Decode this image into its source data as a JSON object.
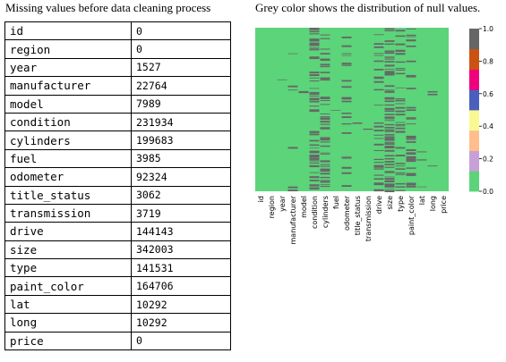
{
  "captions": {
    "left": "Missing values before data cleaning process",
    "right": "Grey color shows the distribution of null values."
  },
  "table": {
    "rows": [
      {
        "column": "id",
        "missing": "0"
      },
      {
        "column": "region",
        "missing": "0"
      },
      {
        "column": "year",
        "missing": "1527"
      },
      {
        "column": "manufacturer",
        "missing": "22764"
      },
      {
        "column": "model",
        "missing": "7989"
      },
      {
        "column": "condition",
        "missing": "231934"
      },
      {
        "column": "cylinders",
        "missing": "199683"
      },
      {
        "column": "fuel",
        "missing": "3985"
      },
      {
        "column": "odometer",
        "missing": "92324"
      },
      {
        "column": "title_status",
        "missing": "3062"
      },
      {
        "column": "transmission",
        "missing": "3719"
      },
      {
        "column": "drive",
        "missing": "144143"
      },
      {
        "column": "size",
        "missing": "342003"
      },
      {
        "column": "type",
        "missing": "141531"
      },
      {
        "column": "paint_color",
        "missing": "164706"
      },
      {
        "column": "lat",
        "missing": "10292"
      },
      {
        "column": "long",
        "missing": "10292"
      },
      {
        "column": "price",
        "missing": "0"
      }
    ]
  },
  "chart_data": {
    "type": "heatmap",
    "x_labels": [
      "id",
      "region",
      "year",
      "manufacturer",
      "model",
      "condition",
      "cylinders",
      "fuel",
      "odometer",
      "title_status",
      "transmission",
      "drive",
      "size",
      "type",
      "paint_color",
      "lat",
      "long",
      "price"
    ],
    "missing_counts": [
      0,
      0,
      1527,
      22764,
      7989,
      231934,
      199683,
      3985,
      92324,
      3062,
      3719,
      144143,
      342003,
      141531,
      164706,
      10292,
      10292,
      0
    ],
    "present_color": "#5cd47a",
    "null_color": "#666666",
    "colorbar": {
      "ticks": [
        "0.0",
        "0.2",
        "0.4",
        "0.6",
        "0.8",
        "1.0"
      ],
      "colors": [
        "#5cd47a",
        "#c8a0d8",
        "#ffbe8c",
        "#f9f994",
        "#4a5fbd",
        "#f0007a",
        "#cc5213",
        "#666666"
      ],
      "range": [
        0,
        1
      ]
    }
  }
}
